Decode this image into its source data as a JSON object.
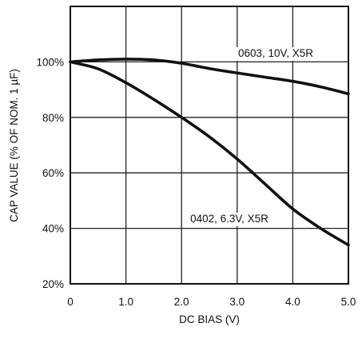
{
  "chart_data": {
    "type": "line",
    "title": "",
    "xlabel": "DC BIAS (V)",
    "ylabel": "CAP VALUE (% OF NOM. 1 µF)",
    "xlim": [
      0,
      5.0
    ],
    "ylim": [
      20,
      120
    ],
    "x_ticks": [
      0,
      1.0,
      2.0,
      3.0,
      4.0,
      5.0
    ],
    "x_tick_labels": [
      "0",
      "1.0",
      "2.0",
      "3.0",
      "4.0",
      "5.0"
    ],
    "y_ticks": [
      20,
      40,
      60,
      80,
      100
    ],
    "y_tick_labels": [
      "20%",
      "40%",
      "60%",
      "80%",
      "100%"
    ],
    "grid": true,
    "series": [
      {
        "name": "0603, 10V, X5R",
        "color": "#111111",
        "x": [
          0,
          0.5,
          1.0,
          1.5,
          2.0,
          2.5,
          3.0,
          3.5,
          4.0,
          4.5,
          5.0
        ],
        "y": [
          100,
          100.7,
          101,
          100.7,
          99.5,
          97.6,
          96,
          94.5,
          93,
          91,
          88.5
        ]
      },
      {
        "name": "0402, 6.3V, X5R",
        "color": "#111111",
        "x": [
          0,
          0.5,
          1.0,
          1.5,
          2.0,
          2.5,
          3.0,
          3.5,
          4.0,
          4.5,
          5.0
        ],
        "y": [
          100,
          97.5,
          92.5,
          86.5,
          80,
          73,
          65,
          56,
          47,
          40,
          34
        ]
      }
    ]
  }
}
